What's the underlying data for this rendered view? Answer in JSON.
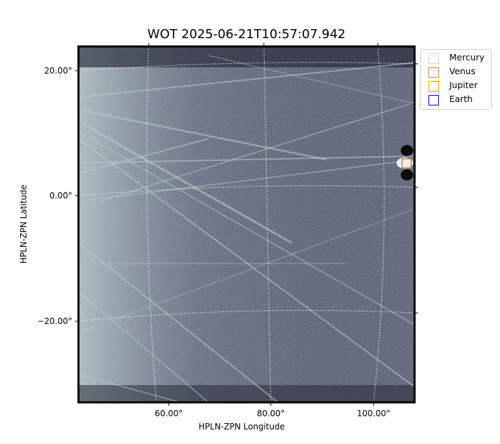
{
  "chart_data": {
    "type": "image",
    "title": "WOT 2025-06-21T10:57:07.942",
    "xlabel": "HPLN-ZPN Longitude",
    "ylabel": "HPLN-ZPN Latitude",
    "x_ticks": [
      "60.00°",
      "80.00°",
      "100.00°"
    ],
    "y_ticks": [
      "20.00°",
      "0.00°",
      "−20.00°"
    ],
    "grid": true,
    "colormap": "bone",
    "legend_position": "outside-top-right",
    "legend": [
      {
        "name": "Mercury",
        "color": "#d3d3d3"
      },
      {
        "name": "Venus",
        "color": "#cd853f"
      },
      {
        "name": "Jupiter",
        "color": "#ffa500"
      },
      {
        "name": "Earth",
        "color": "#0000ff"
      }
    ],
    "markers": [
      {
        "name": "Venus",
        "lon_deg": 107,
        "lat_deg": 5
      }
    ]
  }
}
